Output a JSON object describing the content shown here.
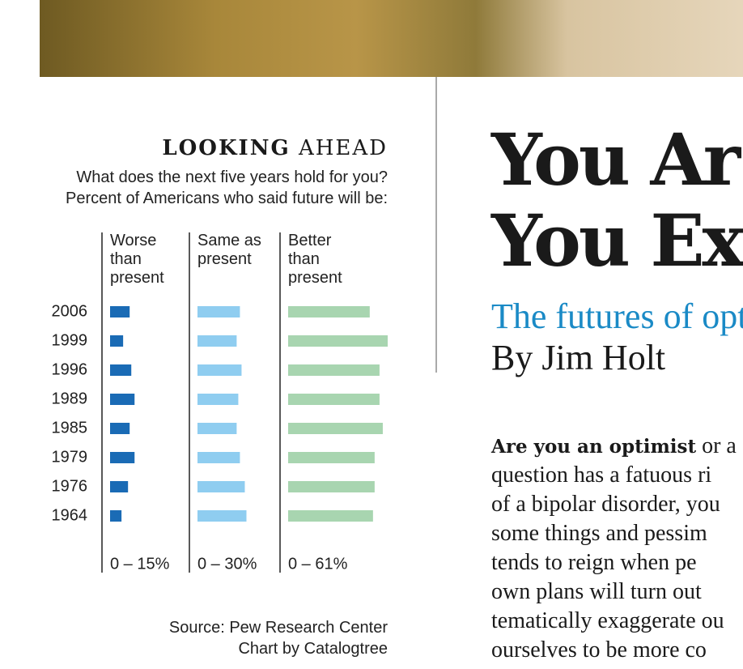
{
  "chart_data": {
    "type": "bar",
    "orientation": "horizontal",
    "title_bold": "LOOKING",
    "title_rest": "AHEAD",
    "subtitle": [
      "What does the next five years hold for you?",
      "Percent of Americans who said future will be:"
    ],
    "categories": [
      "2006",
      "1999",
      "1996",
      "1989",
      "1985",
      "1979",
      "1976",
      "1964"
    ],
    "series": [
      {
        "name": "Worse than present",
        "color": "#1a6bb5",
        "values": [
          12,
          8,
          13,
          15,
          12,
          15,
          11,
          7
        ],
        "range_label": "0 – 15%"
      },
      {
        "name": "Same as present",
        "color": "#8fcdf0",
        "values": [
          26,
          24,
          27,
          25,
          24,
          26,
          29,
          30
        ],
        "range_label": "0 – 30%"
      },
      {
        "name": "Better than present",
        "color": "#a8d5b0",
        "values": [
          50,
          61,
          56,
          56,
          58,
          53,
          53,
          52
        ],
        "range_label": "0 – 61%"
      }
    ],
    "xlim": [
      0,
      61
    ],
    "source": "Source: Pew Research Center",
    "credit": "Chart by Catalogtree"
  },
  "article": {
    "headline": [
      "You Ar",
      "You Ex"
    ],
    "dek": "The futures of opt",
    "byline": "By Jim Holt",
    "lead": "Are you an optimist",
    "lines": [
      "or a",
      "question has a fatuous ri",
      "of a bipolar disorder, you",
      "some things and pessim",
      "tends to reign when pe",
      "own plans will turn out",
      "tematically exaggerate ou",
      "ourselves to be more co"
    ]
  }
}
